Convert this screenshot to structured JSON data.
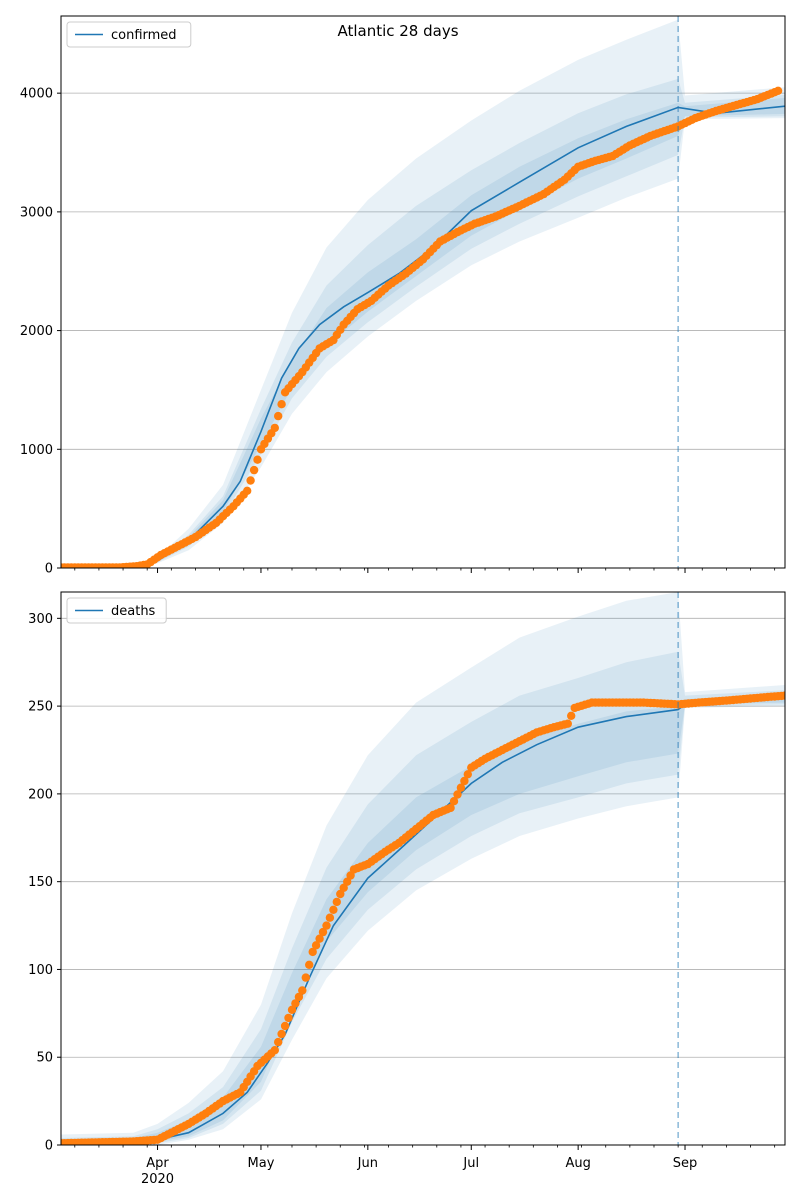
{
  "figure": {
    "title": "Atlantic 28 days"
  },
  "colors": {
    "model_line": "#1f77b4",
    "observed_points": "#ff7f0e",
    "band": "#1f77b4",
    "grid": "#b0b0b0",
    "cutoff_line": "#1f77b4"
  },
  "x_axis": {
    "range": [
      "2020-03-04",
      "2020-09-30"
    ],
    "major_ticks": [
      {
        "date": "2020-04-01",
        "label": "Apr",
        "sublabel": "2020"
      },
      {
        "date": "2020-05-01",
        "label": "May",
        "sublabel": ""
      },
      {
        "date": "2020-06-01",
        "label": "Jun",
        "sublabel": ""
      },
      {
        "date": "2020-07-01",
        "label": "Jul",
        "sublabel": ""
      },
      {
        "date": "2020-08-01",
        "label": "Aug",
        "sublabel": ""
      },
      {
        "date": "2020-09-01",
        "label": "Sep",
        "sublabel": ""
      }
    ],
    "minor_tick_step_days": 7
  },
  "forecast_cutoff_date": "2020-08-30",
  "chart_data": [
    {
      "type": "line",
      "legend": {
        "label": "confirmed",
        "position": "top-left"
      },
      "grid": true,
      "ylim": [
        0,
        4650
      ],
      "yticks": [
        0,
        1000,
        2000,
        3000,
        4000
      ],
      "model": {
        "dates": [
          "2020-03-04",
          "2020-03-15",
          "2020-03-25",
          "2020-04-01",
          "2020-04-10",
          "2020-04-20",
          "2020-04-25",
          "2020-05-01",
          "2020-05-07",
          "2020-05-12",
          "2020-05-18",
          "2020-05-25",
          "2020-06-01",
          "2020-06-10",
          "2020-06-20",
          "2020-07-01",
          "2020-07-15",
          "2020-08-01",
          "2020-08-15",
          "2020-08-30",
          "2020-09-10",
          "2020-09-30"
        ],
        "values": [
          5,
          6,
          10,
          60,
          230,
          520,
          730,
          1150,
          1600,
          1850,
          2050,
          2200,
          2320,
          2480,
          2700,
          3010,
          3250,
          3540,
          3720,
          3880,
          3830,
          3890
        ]
      },
      "bands": {
        "dates": [
          "2020-03-04",
          "2020-03-25",
          "2020-04-01",
          "2020-04-10",
          "2020-04-20",
          "2020-05-01",
          "2020-05-10",
          "2020-05-20",
          "2020-06-01",
          "2020-06-15",
          "2020-07-01",
          "2020-07-15",
          "2020-08-01",
          "2020-08-15",
          "2020-08-30",
          "2020-09-01",
          "2020-09-30"
        ],
        "outer_low": [
          0,
          5,
          40,
          150,
          380,
          850,
          1300,
          1650,
          1950,
          2250,
          2550,
          2750,
          2950,
          3120,
          3280,
          3780,
          3790
        ],
        "outer_high": [
          12,
          20,
          90,
          330,
          700,
          1500,
          2150,
          2700,
          3100,
          3450,
          3770,
          4020,
          4280,
          4450,
          4620,
          3980,
          4050
        ],
        "mid_low": [
          1,
          7,
          47,
          180,
          435,
          960,
          1430,
          1780,
          2070,
          2370,
          2690,
          2900,
          3130,
          3300,
          3480,
          3795,
          3805
        ],
        "mid_high": [
          9,
          14,
          73,
          280,
          605,
          1340,
          1900,
          2380,
          2720,
          3050,
          3350,
          3580,
          3830,
          3990,
          4120,
          3920,
          3985
        ],
        "inner_low": [
          2,
          8,
          53,
          200,
          470,
          1040,
          1520,
          1870,
          2160,
          2460,
          2800,
          3020,
          3280,
          3450,
          3640,
          3805,
          3825
        ],
        "inner_high": [
          7,
          12,
          68,
          260,
          570,
          1260,
          1750,
          2190,
          2490,
          2770,
          3140,
          3380,
          3620,
          3780,
          3920,
          3890,
          3960
        ]
      },
      "observed": {
        "dates": [
          "2020-03-04",
          "2020-03-21",
          "2020-03-26",
          "2020-03-29",
          "2020-04-02",
          "2020-04-06",
          "2020-04-12",
          "2020-04-18",
          "2020-04-23",
          "2020-04-27",
          "2020-05-01",
          "2020-05-05",
          "2020-05-08",
          "2020-05-13",
          "2020-05-18",
          "2020-05-22",
          "2020-05-25",
          "2020-05-29",
          "2020-06-02",
          "2020-06-07",
          "2020-06-12",
          "2020-06-17",
          "2020-06-22",
          "2020-06-27",
          "2020-07-02",
          "2020-07-08",
          "2020-07-15",
          "2020-07-22",
          "2020-07-28",
          "2020-08-01",
          "2020-08-06",
          "2020-08-11",
          "2020-08-16",
          "2020-08-22",
          "2020-08-30",
          "2020-09-04",
          "2020-09-10",
          "2020-09-16",
          "2020-09-22",
          "2020-09-28"
        ],
        "values": [
          5,
          5,
          15,
          30,
          110,
          170,
          260,
          380,
          520,
          650,
          1000,
          1180,
          1480,
          1650,
          1850,
          1920,
          2050,
          2180,
          2250,
          2380,
          2480,
          2600,
          2750,
          2830,
          2900,
          2960,
          3050,
          3150,
          3270,
          3380,
          3430,
          3470,
          3560,
          3640,
          3720,
          3790,
          3850,
          3900,
          3950,
          4020
        ]
      }
    },
    {
      "type": "line",
      "legend": {
        "label": "deaths",
        "position": "top-left"
      },
      "grid": true,
      "ylim": [
        0,
        315
      ],
      "yticks": [
        0,
        50,
        100,
        150,
        200,
        250,
        300
      ],
      "model": {
        "dates": [
          "2020-03-04",
          "2020-03-25",
          "2020-04-01",
          "2020-04-10",
          "2020-04-20",
          "2020-04-27",
          "2020-05-03",
          "2020-05-08",
          "2020-05-15",
          "2020-05-22",
          "2020-06-01",
          "2020-06-10",
          "2020-06-20",
          "2020-07-01",
          "2020-07-10",
          "2020-07-20",
          "2020-08-01",
          "2020-08-15",
          "2020-08-30",
          "2020-09-01",
          "2020-09-30"
        ],
        "values": [
          0,
          1,
          3,
          7,
          18,
          30,
          47,
          63,
          95,
          125,
          152,
          168,
          186,
          206,
          218,
          228,
          238,
          244,
          248,
          251,
          255
        ]
      },
      "bands": {
        "dates": [
          "2020-03-04",
          "2020-03-25",
          "2020-04-01",
          "2020-04-10",
          "2020-04-20",
          "2020-05-01",
          "2020-05-10",
          "2020-05-20",
          "2020-06-01",
          "2020-06-15",
          "2020-07-01",
          "2020-07-15",
          "2020-08-01",
          "2020-08-15",
          "2020-08-30",
          "2020-09-01",
          "2020-09-30"
        ],
        "outer_low": [
          0,
          0,
          0,
          3,
          9,
          26,
          60,
          95,
          122,
          145,
          163,
          176,
          186,
          193,
          198,
          249,
          250
        ],
        "outer_high": [
          6,
          7,
          12,
          24,
          42,
          80,
          132,
          182,
          222,
          252,
          272,
          289,
          301,
          310,
          315,
          258,
          262
        ],
        "mid_low": [
          0,
          0,
          1,
          4,
          12,
          31,
          70,
          106,
          134,
          157,
          176,
          189,
          198,
          206,
          211,
          250,
          251
        ],
        "mid_high": [
          4,
          5,
          9,
          18,
          33,
          66,
          112,
          158,
          194,
          222,
          241,
          256,
          266,
          275,
          281,
          256,
          259
        ],
        "inner_low": [
          0,
          0,
          2,
          5,
          14,
          36,
          78,
          116,
          144,
          168,
          188,
          200,
          210,
          218,
          223,
          251,
          252
        ],
        "inner_high": [
          3,
          4,
          7,
          14,
          27,
          56,
          98,
          140,
          172,
          198,
          216,
          230,
          240,
          247,
          250,
          254,
          257
        ]
      },
      "observed": {
        "dates": [
          "2020-03-04",
          "2020-03-25",
          "2020-04-01",
          "2020-04-05",
          "2020-04-10",
          "2020-04-15",
          "2020-04-20",
          "2020-04-25",
          "2020-04-30",
          "2020-05-05",
          "2020-05-10",
          "2020-05-13",
          "2020-05-16",
          "2020-05-20",
          "2020-05-24",
          "2020-05-28",
          "2020-06-01",
          "2020-06-06",
          "2020-06-10",
          "2020-06-15",
          "2020-06-20",
          "2020-06-25",
          "2020-07-01",
          "2020-07-05",
          "2020-07-10",
          "2020-07-15",
          "2020-07-20",
          "2020-07-25",
          "2020-07-29",
          "2020-07-31",
          "2020-08-05",
          "2020-08-10",
          "2020-08-15",
          "2020-08-20",
          "2020-08-30",
          "2020-09-05",
          "2020-09-12",
          "2020-09-18",
          "2020-09-24",
          "2020-09-30"
        ],
        "values": [
          1,
          2,
          3,
          7,
          12,
          18,
          25,
          30,
          45,
          54,
          77,
          88,
          110,
          125,
          143,
          157,
          160,
          167,
          172,
          180,
          188,
          192,
          215,
          220,
          225,
          230,
          235,
          238,
          240,
          249,
          252,
          252,
          252,
          252,
          251,
          252,
          253,
          254,
          255,
          256
        ]
      }
    }
  ]
}
